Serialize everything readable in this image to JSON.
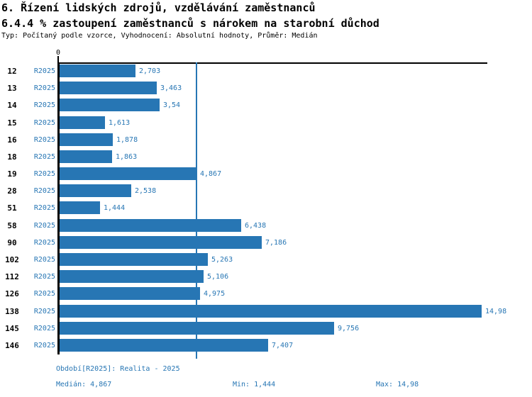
{
  "header": {
    "title": "6. Řízení lidských zdrojů, vzdělávání zaměstnanců",
    "subtitle": "6.4.4 % zastoupení zaměstnanců s nárokem na starobní důchod",
    "meta": "Typ: Počítaný podle vzorce, Vyhodnocení: Absolutní hodnoty, Průměr: Medián"
  },
  "chart_data": {
    "type": "bar",
    "orientation": "horizontal",
    "title": "6.4.4 % zastoupení zaměstnanců s nárokem na starobní důchod",
    "categories": [
      "12",
      "13",
      "14",
      "15",
      "16",
      "18",
      "19",
      "28",
      "51",
      "58",
      "90",
      "102",
      "112",
      "126",
      "138",
      "145",
      "146"
    ],
    "series": [
      {
        "name": "R2025",
        "values": [
          2.703,
          3.463,
          3.54,
          1.613,
          1.878,
          1.863,
          4.867,
          2.538,
          1.444,
          6.438,
          7.186,
          5.263,
          5.106,
          4.975,
          14.98,
          9.756,
          7.407
        ]
      }
    ],
    "value_labels": [
      "2,703",
      "3,463",
      "3,54",
      "1,613",
      "1,878",
      "1,863",
      "4,867",
      "2,538",
      "1,444",
      "6,438",
      "7,186",
      "5,263",
      "5,106",
      "4,975",
      "14,98",
      "9,756",
      "7,407"
    ],
    "x_tick_labels": [
      "0"
    ],
    "xlim": [
      0,
      15.2
    ],
    "grid": false,
    "legend_position": "none",
    "reference_line": {
      "name": "Medián",
      "value": 4.867
    },
    "colors": {
      "bar": "#2776b4",
      "blue_text": "#2776b4",
      "axis": "#000000",
      "median_line": "#2776b4"
    }
  },
  "footer": {
    "period": "Období[R2025]: Realita - 2025",
    "median": "Medián: 4,867",
    "min": "Min: 1,444",
    "max": "Max: 14,98"
  }
}
